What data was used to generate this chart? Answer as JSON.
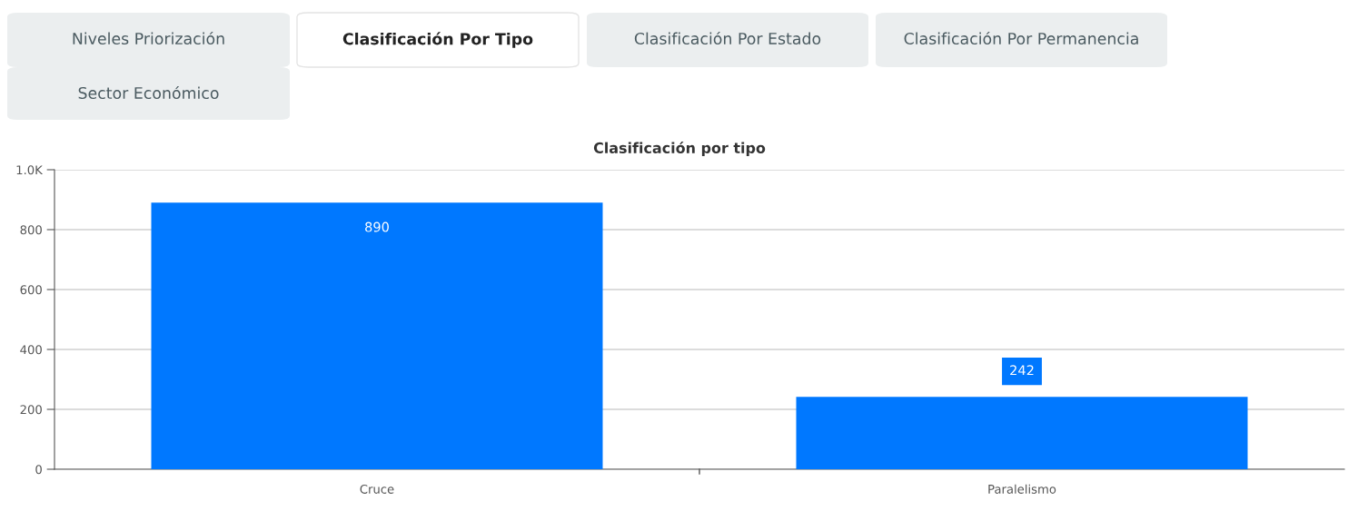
{
  "chart_data": {
    "type": "bar",
    "title": "Clasificación por tipo",
    "categories": [
      "Cruce",
      "Paralelismo"
    ],
    "values": [
      890,
      242
    ],
    "color": "#0078ff",
    "ylim": [
      0,
      1000
    ],
    "yticks": [
      0,
      200,
      400,
      600,
      800,
      {
        "value": 1000,
        "label": "1.0K"
      }
    ],
    "grid": "y",
    "data_labels": true,
    "annotations": [
      "Niveles Priorización",
      "Clasificación Por Tipo",
      "Clasificación Por Estado",
      "Clasificación Por Permanencia",
      "Sector Económico"
    ]
  }
}
